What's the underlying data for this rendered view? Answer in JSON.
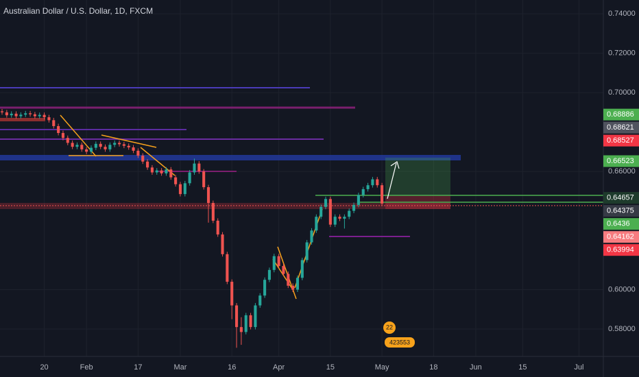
{
  "chart_data": {
    "type": "candlestick",
    "title": "Australian Dollar / U.S. Dollar, 1D, FXCM",
    "up_color": "#26a69a",
    "down_color": "#ef5350",
    "x": [
      0,
      1,
      2,
      3,
      4,
      5,
      6,
      7,
      8,
      9,
      10,
      11,
      12,
      13,
      14,
      15,
      16,
      17,
      18,
      19,
      20,
      21,
      22,
      23,
      24,
      25,
      26,
      27,
      28,
      29,
      30,
      31,
      32,
      33,
      34,
      35,
      36,
      37,
      38,
      39,
      40,
      41,
      42,
      43,
      44,
      45,
      46,
      47,
      48,
      49,
      50,
      51,
      52,
      53,
      54,
      55,
      56,
      57,
      58,
      59,
      60,
      61,
      62,
      63,
      64,
      65,
      66,
      67,
      68,
      69,
      70,
      71,
      72,
      73,
      74,
      75,
      76,
      77,
      78,
      79,
      80,
      81
    ],
    "open": [
      0.6905,
      0.69,
      0.6885,
      0.6893,
      0.688,
      0.6888,
      0.6895,
      0.689,
      0.688,
      0.6887,
      0.6875,
      0.686,
      0.683,
      0.6795,
      0.677,
      0.6745,
      0.6725,
      0.6735,
      0.6712,
      0.67,
      0.672,
      0.674,
      0.6725,
      0.6712,
      0.6735,
      0.6745,
      0.6738,
      0.673,
      0.6722,
      0.6705,
      0.668,
      0.665,
      0.662,
      0.6595,
      0.6605,
      0.659,
      0.661,
      0.657,
      0.6535,
      0.6485,
      0.654,
      0.6595,
      0.664,
      0.66,
      0.652,
      0.644,
      0.635,
      0.628,
      0.618,
      0.604,
      0.592,
      0.581,
      0.5785,
      0.587,
      0.581,
      0.592,
      0.597,
      0.605,
      0.61,
      0.617,
      0.612,
      0.608,
      0.602,
      0.6,
      0.606,
      0.615,
      0.624,
      0.63,
      0.637,
      0.642,
      0.646,
      0.633,
      0.637,
      0.636,
      0.637,
      0.64,
      0.643,
      0.648,
      0.651,
      0.653,
      0.656,
      0.653
    ],
    "high": [
      0.6917,
      0.6912,
      0.6905,
      0.6905,
      0.69,
      0.6907,
      0.6907,
      0.6902,
      0.6899,
      0.6899,
      0.6887,
      0.6872,
      0.6842,
      0.6807,
      0.6782,
      0.6757,
      0.6747,
      0.6747,
      0.6724,
      0.6732,
      0.6752,
      0.6752,
      0.6737,
      0.6747,
      0.6757,
      0.6757,
      0.675,
      0.6742,
      0.6734,
      0.6717,
      0.6692,
      0.6662,
      0.6632,
      0.6617,
      0.6617,
      0.6622,
      0.6622,
      0.6582,
      0.6547,
      0.6552,
      0.6607,
      0.6665,
      0.6652,
      0.6612,
      0.6532,
      0.6452,
      0.6362,
      0.6292,
      0.6192,
      0.6052,
      0.5932,
      0.586,
      0.5882,
      0.5882,
      0.5932,
      0.5982,
      0.6062,
      0.6112,
      0.6182,
      0.6182,
      0.6132,
      0.6092,
      0.6032,
      0.6072,
      0.6162,
      0.6252,
      0.6312,
      0.6382,
      0.6432,
      0.6472,
      0.6472,
      0.6382,
      0.6382,
      0.6382,
      0.6412,
      0.6442,
      0.6492,
      0.6522,
      0.6542,
      0.6572,
      0.6572,
      0.6542
    ],
    "low": [
      0.6888,
      0.6873,
      0.6873,
      0.6868,
      0.6868,
      0.6876,
      0.6878,
      0.6868,
      0.6868,
      0.6863,
      0.6848,
      0.6818,
      0.6783,
      0.6758,
      0.6733,
      0.6713,
      0.6713,
      0.67,
      0.6688,
      0.6688,
      0.6708,
      0.6713,
      0.67,
      0.67,
      0.6723,
      0.6726,
      0.6718,
      0.671,
      0.6693,
      0.6668,
      0.6638,
      0.6608,
      0.6583,
      0.6583,
      0.6578,
      0.6578,
      0.6558,
      0.6523,
      0.6473,
      0.6473,
      0.6528,
      0.6583,
      0.6588,
      0.6508,
      0.634,
      0.6338,
      0.6268,
      0.6168,
      0.6028,
      0.585,
      0.5705,
      0.572,
      0.5773,
      0.5798,
      0.5798,
      0.5908,
      0.5958,
      0.6038,
      0.6088,
      0.6108,
      0.6068,
      0.6008,
      0.5988,
      0.5988,
      0.6048,
      0.6138,
      0.6228,
      0.6288,
      0.6358,
      0.6408,
      0.6318,
      0.6318,
      0.6348,
      0.631,
      0.6358,
      0.6388,
      0.6418,
      0.6468,
      0.6498,
      0.6518,
      0.6518,
      0.6425
    ],
    "close": [
      0.69,
      0.6885,
      0.6893,
      0.688,
      0.6888,
      0.6895,
      0.689,
      0.688,
      0.6887,
      0.6875,
      0.686,
      0.683,
      0.6795,
      0.677,
      0.6745,
      0.6725,
      0.6735,
      0.6712,
      0.67,
      0.672,
      0.674,
      0.6725,
      0.6712,
      0.6735,
      0.6745,
      0.6738,
      0.673,
      0.6722,
      0.6705,
      0.668,
      0.665,
      0.662,
      0.6595,
      0.6605,
      0.659,
      0.661,
      0.657,
      0.6535,
      0.6485,
      0.654,
      0.6595,
      0.664,
      0.66,
      0.652,
      0.644,
      0.635,
      0.628,
      0.618,
      0.604,
      0.592,
      0.581,
      0.5785,
      0.587,
      0.581,
      0.592,
      0.597,
      0.605,
      0.61,
      0.617,
      0.612,
      0.608,
      0.602,
      0.6,
      0.606,
      0.615,
      0.624,
      0.63,
      0.637,
      0.642,
      0.646,
      0.633,
      0.637,
      0.636,
      0.637,
      0.64,
      0.643,
      0.648,
      0.651,
      0.653,
      0.656,
      0.653,
      0.6437
    ],
    "xlim": [
      -0.44,
      128.2
    ],
    "ylim": [
      0.5661,
      0.747
    ],
    "xticks": [
      {
        "value": 9,
        "label": "20"
      },
      {
        "value": 18,
        "label": "Feb"
      },
      {
        "value": 29,
        "label": "17"
      },
      {
        "value": 38,
        "label": "Mar"
      },
      {
        "value": 49,
        "label": "16"
      },
      {
        "value": 59,
        "label": "Apr"
      },
      {
        "value": 70,
        "label": "15"
      },
      {
        "value": 81,
        "label": "May"
      },
      {
        "value": 92,
        "label": "18"
      },
      {
        "value": 101,
        "label": "Jun"
      },
      {
        "value": 111,
        "label": "15"
      },
      {
        "value": 123,
        "label": "Jul"
      }
    ],
    "yticks": [
      {
        "value": 0.74,
        "label": "0.74000"
      },
      {
        "value": 0.72,
        "label": "0.72000"
      },
      {
        "value": 0.7,
        "label": "0.70000"
      },
      {
        "value": 0.66,
        "label": "0.66000"
      },
      {
        "value": 0.6,
        "label": "0.60000"
      },
      {
        "value": 0.58,
        "label": "0.58000"
      }
    ],
    "price_labels": [
      {
        "value": 0.68886,
        "color": "#4caf50"
      },
      {
        "value": 0.68621,
        "color": "#50535e"
      },
      {
        "value": 0.68527,
        "color": "#f23645"
      },
      {
        "value": 0.66523,
        "color": "#4caf50"
      },
      {
        "value": 0.64657,
        "color": "#1e3b2c"
      },
      {
        "value": 0.64375,
        "color": "#363a45"
      },
      {
        "value": 0.6436,
        "color": "#4caf50"
      },
      {
        "value": 0.64162,
        "color": "#f77c80"
      },
      {
        "value": 0.63994,
        "color": "#f23645"
      }
    ],
    "event_labels": [
      "22",
      "423553"
    ],
    "grid": true
  }
}
